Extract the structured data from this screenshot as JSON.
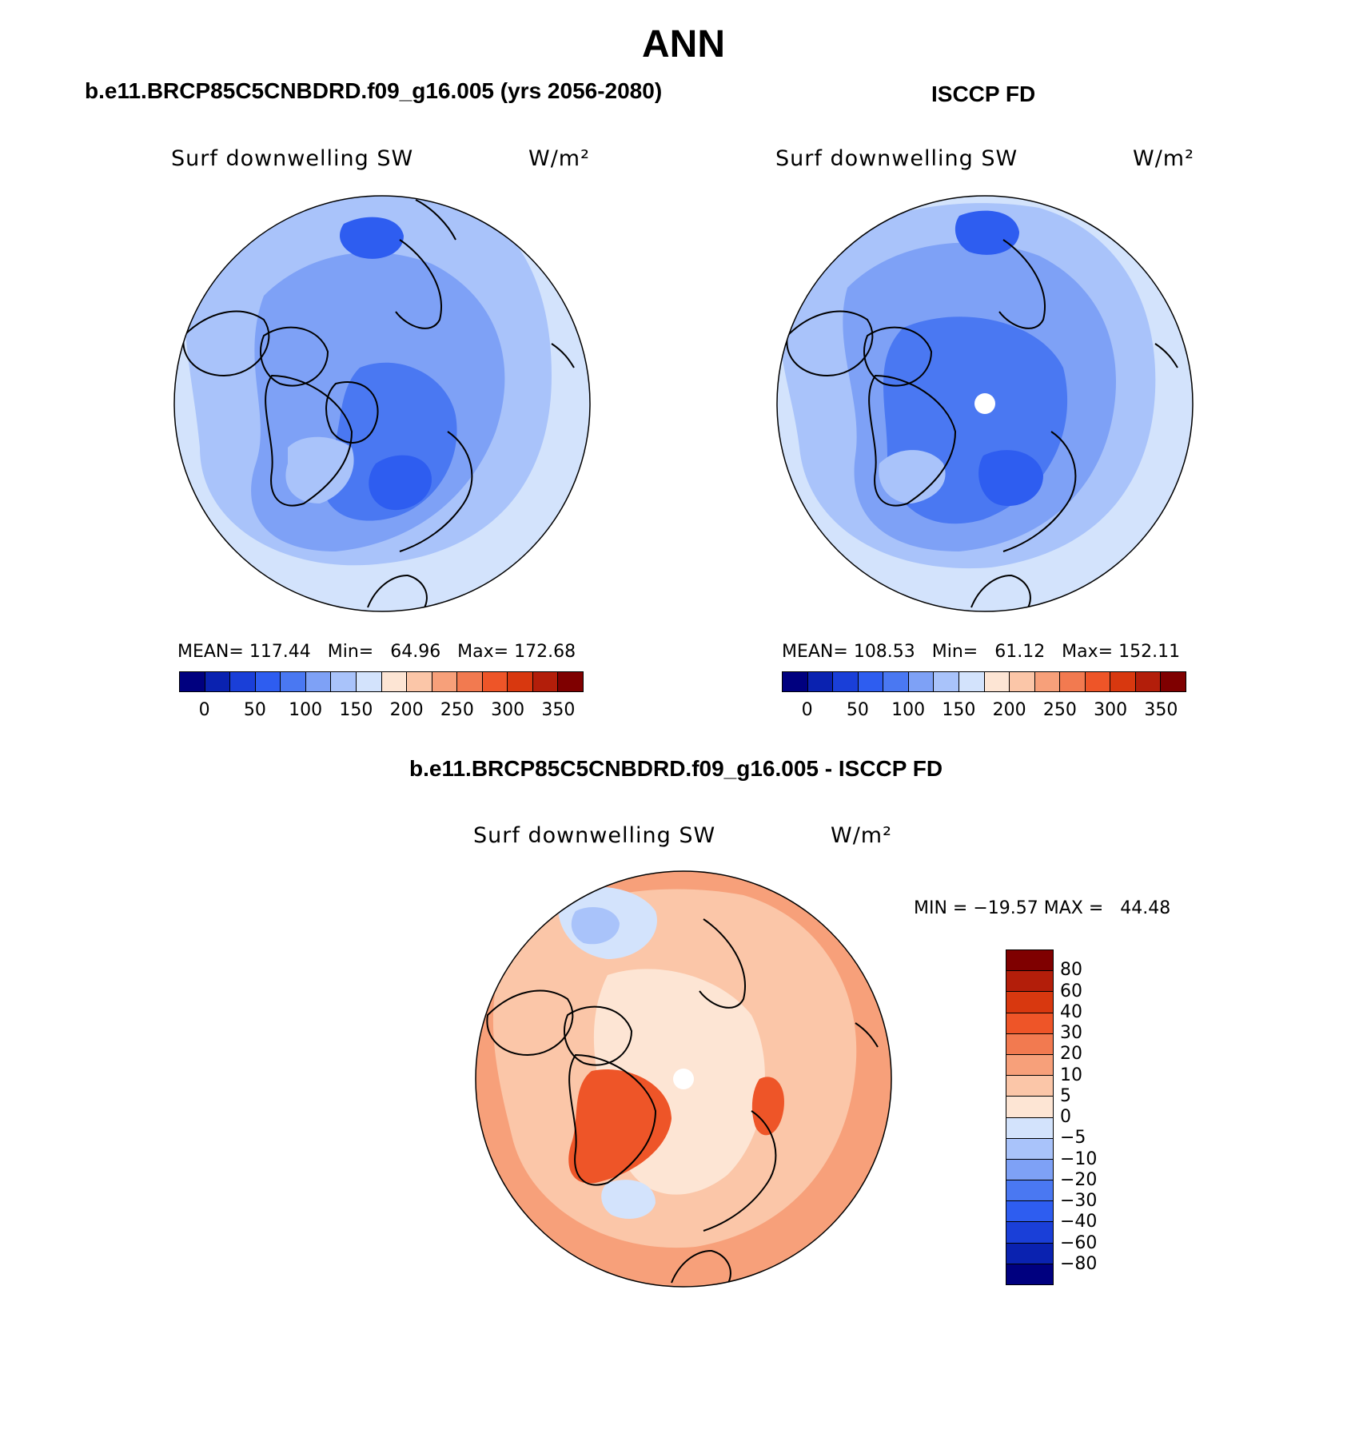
{
  "main_title": "ANN",
  "panels": [
    {
      "title": "b.e11.BRCP85C5CNBDRD.f09_g16.005 (yrs 2056-2080)",
      "var_label": "Surf downwelling SW",
      "units": "W/m²",
      "stats": "MEAN= 117.44   Min=   64.96   Max= 172.68"
    },
    {
      "title": "ISCCP FD",
      "var_label": "Surf downwelling SW",
      "units": "W/m²",
      "stats": "MEAN= 108.53   Min=   61.12   Max= 152.11"
    },
    {
      "title": "b.e11.BRCP85C5CNBDRD.f09_g16.005 - ISCCP FD",
      "var_label": "Surf downwelling SW",
      "units": "W/m²",
      "stats": "MIN = −19.57 MAX =   44.48"
    }
  ],
  "abs_colorbar": {
    "labels": [
      "0",
      "50",
      "100",
      "150",
      "200",
      "250",
      "300",
      "350"
    ],
    "colors": [
      "#00007f",
      "#0a22b0",
      "#1a3fd8",
      "#2e5df0",
      "#4a78f2",
      "#7ea1f6",
      "#a9c3fa",
      "#d3e3fc",
      "#fde5d4",
      "#fbc6a8",
      "#f7a07a",
      "#f27a50",
      "#ee5528",
      "#d8380f",
      "#b31e0a",
      "#7f0000"
    ]
  },
  "diff_colorbar": {
    "labels": [
      "80",
      "60",
      "40",
      "30",
      "20",
      "10",
      "5",
      "0",
      "−5",
      "−10",
      "−20",
      "−30",
      "−40",
      "−60",
      "−80"
    ],
    "colors": [
      "#7f0000",
      "#b31e0a",
      "#d8380f",
      "#ee5528",
      "#f27a50",
      "#f7a07a",
      "#fbc6a8",
      "#fde5d4",
      "#d3e3fc",
      "#a9c3fa",
      "#7ea1f6",
      "#4a78f2",
      "#2e5df0",
      "#1a3fd8",
      "#0a22b0",
      "#00007f"
    ]
  },
  "map_colors": {
    "model": {
      "outer": "#d3e3fc",
      "mid": "#a9c3fa",
      "inner": "#7ea1f6",
      "core": "#4a78f2",
      "deep": "#2e5df0",
      "greenland": "#a9c3fa"
    },
    "obs": {
      "outer": "#d3e3fc",
      "mid": "#a9c3fa",
      "inner": "#7ea1f6",
      "core": "#4a78f2",
      "deep": "#2e5df0",
      "greenland": "#a9c3fa"
    },
    "diff": {
      "outer": "#f7a07a",
      "mid": "#fbc6a8",
      "inner": "#fde5d4",
      "neg1": "#d3e3fc",
      "neg2": "#a9c3fa",
      "hot": "#ee5528"
    }
  }
}
